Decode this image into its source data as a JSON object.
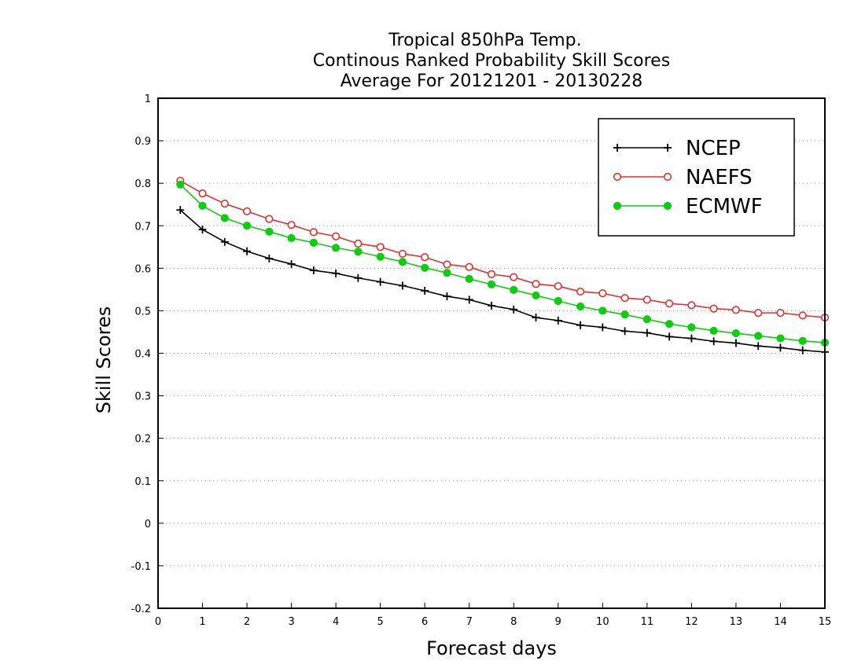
{
  "chart_data": {
    "type": "line",
    "title": [
      "Tropical 850hPa Temp.",
      "Continous Ranked Probability Skill Scores",
      "Average For 20121201 - 20130228"
    ],
    "xlabel": "Forecast days",
    "ylabel": "Skill Scores",
    "xlim": [
      0,
      15
    ],
    "ylim": [
      -0.2,
      1
    ],
    "xticks": [
      "0",
      "1",
      "2",
      "3",
      "4",
      "5",
      "6",
      "7",
      "8",
      "9",
      "10",
      "11",
      "12",
      "13",
      "14",
      "15"
    ],
    "yticks": [
      "1",
      "0.9",
      "0.8",
      "0.7",
      "0.6",
      "0.5",
      "0.4",
      "0.3",
      "0.2",
      "0.1",
      "0",
      "-0.1",
      "-0.2"
    ],
    "grid": "horizontal dotted",
    "legend_position": "top-right",
    "x": [
      0.5,
      1,
      1.5,
      2,
      2.5,
      3,
      3.5,
      4,
      4.5,
      5,
      5.5,
      6,
      6.5,
      7,
      7.5,
      8,
      8.5,
      9,
      9.5,
      10,
      10.5,
      11,
      11.5,
      12,
      12.5,
      13,
      13.5,
      14,
      14.5,
      15
    ],
    "series": [
      {
        "name": "NCEP",
        "color": "#000000",
        "marker": "plus",
        "values": [
          0.737,
          0.691,
          0.662,
          0.64,
          0.623,
          0.61,
          0.595,
          0.588,
          0.577,
          0.568,
          0.559,
          0.547,
          0.534,
          0.526,
          0.512,
          0.503,
          0.484,
          0.477,
          0.466,
          0.461,
          0.452,
          0.448,
          0.439,
          0.435,
          0.428,
          0.424,
          0.417,
          0.413,
          0.407,
          0.403
        ]
      },
      {
        "name": "NAEFS",
        "color": "#e03030",
        "marker": "open-circle",
        "values": [
          0.806,
          0.776,
          0.752,
          0.734,
          0.716,
          0.702,
          0.685,
          0.675,
          0.658,
          0.65,
          0.634,
          0.626,
          0.609,
          0.603,
          0.586,
          0.579,
          0.563,
          0.558,
          0.545,
          0.541,
          0.53,
          0.526,
          0.517,
          0.513,
          0.505,
          0.502,
          0.495,
          0.495,
          0.489,
          0.484
        ]
      },
      {
        "name": "ECMWF",
        "color": "#10cc10",
        "marker": "filled-circle",
        "values": [
          0.797,
          0.747,
          0.718,
          0.7,
          0.686,
          0.671,
          0.66,
          0.648,
          0.639,
          0.627,
          0.615,
          0.601,
          0.589,
          0.575,
          0.562,
          0.549,
          0.536,
          0.523,
          0.51,
          0.5,
          0.491,
          0.48,
          0.469,
          0.461,
          0.453,
          0.447,
          0.441,
          0.435,
          0.429,
          0.425
        ]
      }
    ]
  }
}
